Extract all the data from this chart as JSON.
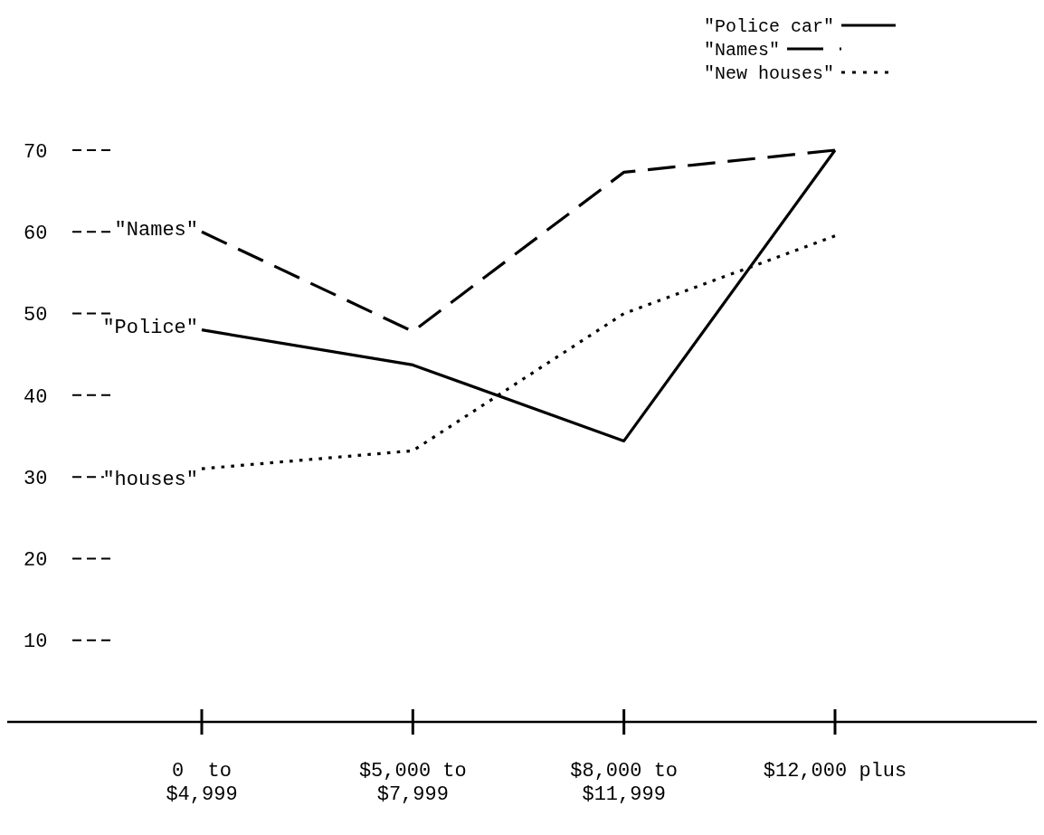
{
  "chart_data": {
    "type": "line",
    "categories": [
      "0  to\n$4,999",
      "$5,000 to\n$7,999",
      "$8,000 to\n$11,999",
      "$12,000 plus"
    ],
    "series": [
      {
        "name": "\"Police car\"",
        "color": "#000000",
        "line_style": "solid",
        "values": [
          48,
          43.7,
          34.4,
          70
        ]
      },
      {
        "name": "\"Names\"",
        "color": "#000000",
        "line_style": "dashed",
        "values": [
          60,
          47.8,
          67.3,
          70
        ]
      },
      {
        "name": "\"New houses\"",
        "color": "#000000",
        "line_style": "dotted",
        "values": [
          31,
          33.2,
          50,
          59.5
        ]
      }
    ],
    "ylim": [
      0,
      70
    ],
    "yticks": [
      10,
      20,
      30,
      40,
      50,
      60,
      70
    ],
    "grid": false,
    "legend": "top right",
    "marker": "none",
    "annotations": [
      "\"Police\"",
      "\"Names\"",
      "\"houses\""
    ]
  }
}
